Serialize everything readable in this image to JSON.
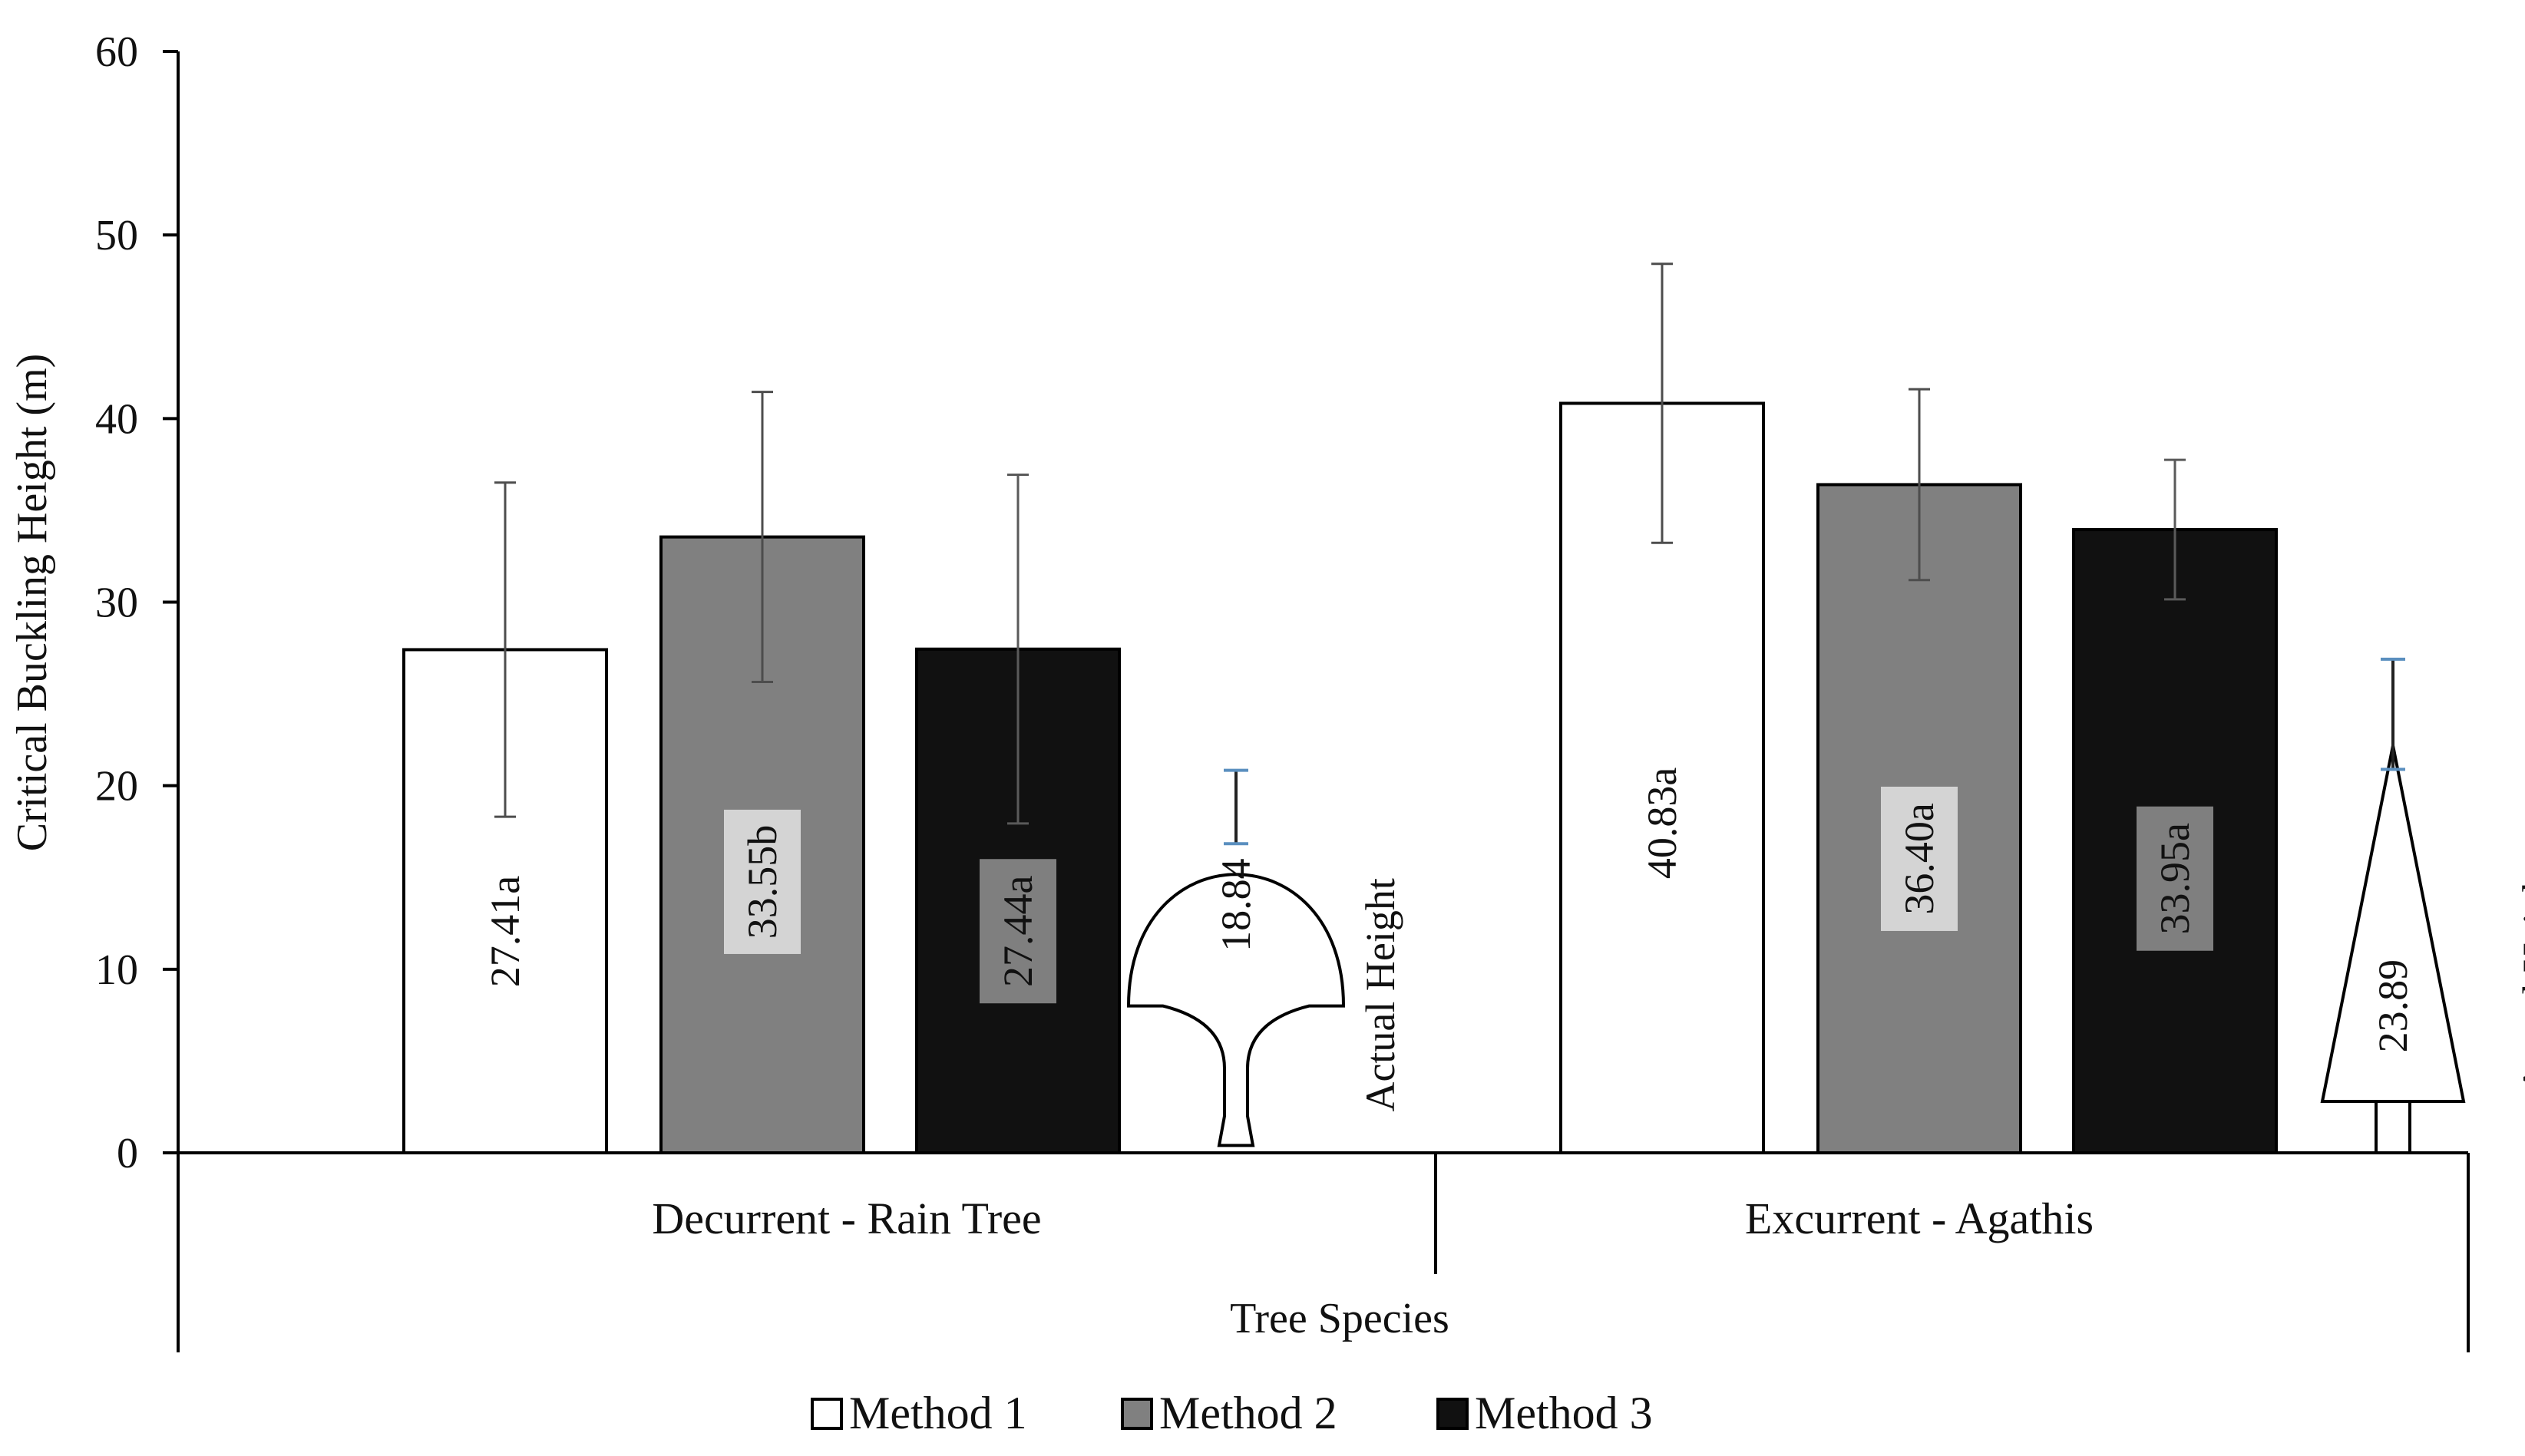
{
  "chart_data": {
    "type": "bar",
    "title": "",
    "xlabel": "Tree Species",
    "ylabel": "Critical Buckling Height (m)",
    "ylim": [
      0,
      60
    ],
    "yticks": [
      0,
      10,
      20,
      30,
      40,
      50,
      60
    ],
    "grid": false,
    "legend_position": "bottom",
    "categories": [
      "Decurrent - Rain Tree",
      "Excurrent - Agathis"
    ],
    "series": [
      {
        "name": "Method 1",
        "color": "#ffffff",
        "values": [
          27.41,
          40.83
        ],
        "errors": [
          9.1,
          7.6
        ],
        "labels": [
          "27.41a",
          "40.83a"
        ]
      },
      {
        "name": "Method 2",
        "color": "#808080",
        "values": [
          33.55,
          36.4
        ],
        "errors": [
          7.9,
          5.2
        ],
        "labels": [
          "33.55b",
          "36.40a"
        ]
      },
      {
        "name": "Method 3",
        "color": "#111111",
        "values": [
          27.44,
          33.95
        ],
        "errors": [
          9.5,
          3.8
        ],
        "labels": [
          "27.44a",
          "33.95a"
        ]
      }
    ],
    "actual_height": {
      "label": "Actual Height",
      "values": [
        18.84,
        23.89
      ],
      "labels": [
        "18.84",
        "23.89"
      ],
      "errors": [
        2.0,
        3.0
      ],
      "crown_shapes": [
        "decurrent",
        "excurrent"
      ]
    }
  }
}
